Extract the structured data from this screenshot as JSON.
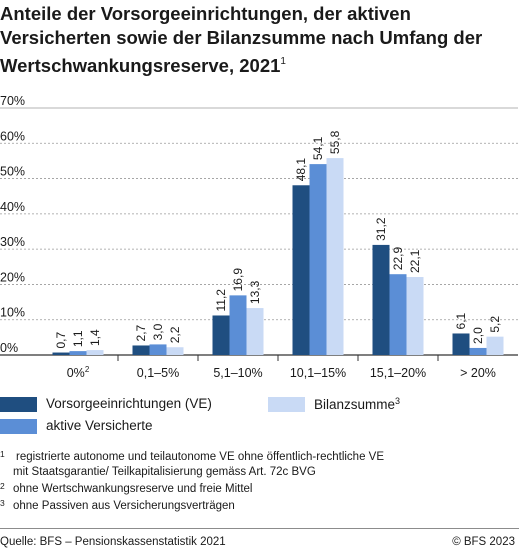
{
  "title": "Anteile der Vorsorgeeinrichtungen, der aktiven Versicherten sowie der Bilanzsumme nach Umfang der Wertschwankungsreserve, 2021",
  "title_footnote": "1",
  "colors": {
    "ve": "#1f4e80",
    "aktive": "#5b8ed6",
    "bilanz": "#c9daf5",
    "axis": "#333333",
    "grid": "#9a9a9a"
  },
  "chart_data": {
    "type": "bar",
    "categories": [
      "0%",
      "0,1–5%",
      "5,1–10%",
      "10,1–15%",
      "15,1–20%",
      "> 20%"
    ],
    "category_footnotes": [
      "2",
      "",
      "",
      "",
      "",
      ""
    ],
    "series": [
      {
        "name": "Vorsorgeeinrichtungen (VE)",
        "values": [
          0.7,
          2.7,
          11.2,
          48.1,
          31.2,
          6.1
        ],
        "labels": [
          "0,7",
          "2,7",
          "11,2",
          "48,1",
          "31,2",
          "6,1"
        ]
      },
      {
        "name": "aktive Versicherte",
        "values": [
          1.1,
          3.0,
          16.9,
          54.1,
          22.9,
          2.0
        ],
        "labels": [
          "1,1",
          "3,0",
          "16,9",
          "54,1",
          "22,9",
          "2,0"
        ]
      },
      {
        "name": "Bilanzsumme",
        "values": [
          1.4,
          2.2,
          13.3,
          55.8,
          22.1,
          5.2
        ],
        "labels": [
          "1,4",
          "2,2",
          "13,3",
          "55,8",
          "22,1",
          "5,2"
        ]
      }
    ],
    "ylim": [
      0,
      70
    ],
    "yticks": [
      0,
      10,
      20,
      30,
      40,
      50,
      60,
      70
    ],
    "ytick_labels": [
      "0%",
      "10%",
      "20%",
      "30%",
      "40%",
      "50%",
      "60%",
      "70%"
    ],
    "grid": true,
    "legend": {
      "placement": "bottom",
      "items": [
        "Vorsorgeeinrichtungen (VE)",
        "aktive Versicherte",
        "Bilanzsumme"
      ],
      "bilanz_footnote": "3"
    }
  },
  "footnotes": [
    {
      "num": "1",
      "lines": [
        "registrierte autonome und teilautonome VE ohne öffentlich-rechtliche VE",
        "mit Staatsgarantie/ Teilkapitalisierung gemäss Art. 72c BVG"
      ]
    },
    {
      "num": "2",
      "lines": [
        "ohne Wertschwankungsreserve und freie Mittel"
      ]
    },
    {
      "num": "3",
      "lines": [
        "ohne Passiven aus Versicherungsverträgen"
      ]
    }
  ],
  "source": "Quelle: BFS – Pensionskassenstatistik 2021",
  "copyright": "© BFS 2023"
}
